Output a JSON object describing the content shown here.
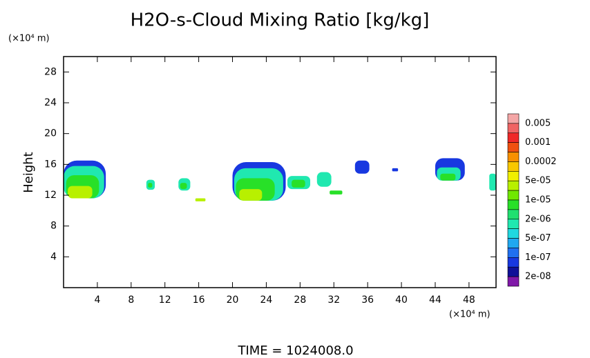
{
  "chart_data": {
    "type": "contour",
    "title": "H2O-s-Cloud Mixing Ratio [kg/kg]",
    "y_unit": "(×10⁴ m)",
    "x_unit": "(×10⁴ m)",
    "ylabel": "Height",
    "footer": "TIME = 1024008.0",
    "xlim": [
      0,
      51.2
    ],
    "ylim": [
      0,
      30
    ],
    "xticks": [
      4,
      8,
      12,
      16,
      20,
      24,
      28,
      32,
      36,
      40,
      44,
      48
    ],
    "yticks": [
      4,
      8,
      12,
      16,
      20,
      24,
      28
    ],
    "colorbar": {
      "levels": [
        0.005,
        0.001,
        0.0002,
        {
          "value": 5e-05,
          "label": "5e-05"
        },
        {
          "value": 1e-05,
          "label": "1e-05"
        },
        {
          "value": 2e-06,
          "label": "2e-06"
        },
        {
          "value": 5e-07,
          "label": "5e-07"
        },
        {
          "value": 1e-07,
          "label": "1e-07"
        },
        {
          "value": 2e-08,
          "label": "2e-08"
        }
      ],
      "colors": [
        "#f4a6a6",
        "#f06464",
        "#f02828",
        "#f05010",
        "#f89000",
        "#f8c800",
        "#f0f000",
        "#b8f000",
        "#70e800",
        "#28e028",
        "#20e070",
        "#20e8b0",
        "#20d8e0",
        "#20a8f0",
        "#2070f0",
        "#1838e0",
        "#101098",
        "#8018a8"
      ]
    },
    "clouds": [
      {
        "x": [
          0,
          5
        ],
        "y": [
          11.6,
          16.5
        ],
        "value": 1e-07
      },
      {
        "x": [
          0,
          4.8
        ],
        "y": [
          11.6,
          15.8
        ],
        "value": 2e-06
      },
      {
        "x": [
          0.3,
          4.2
        ],
        "y": [
          11.6,
          14.6
        ],
        "value": 1e-05
      },
      {
        "x": [
          0.5,
          3.4
        ],
        "y": [
          11.6,
          13.2
        ],
        "value": 5e-05
      },
      {
        "x": [
          9.8,
          10.8
        ],
        "y": [
          12.7,
          14.0
        ],
        "value": 2e-06
      },
      {
        "x": [
          10.0,
          10.5
        ],
        "y": [
          13.0,
          13.6
        ],
        "value": 1e-05
      },
      {
        "x": [
          13.6,
          15.0
        ],
        "y": [
          12.6,
          14.2
        ],
        "value": 2e-06
      },
      {
        "x": [
          13.8,
          14.6
        ],
        "y": [
          12.8,
          13.6
        ],
        "value": 1e-05
      },
      {
        "x": [
          15.6,
          16.8
        ],
        "y": [
          11.2,
          11.6
        ],
        "value": 5e-05
      },
      {
        "x": [
          20.0,
          26.3
        ],
        "y": [
          11.3,
          16.3
        ],
        "value": 1e-07
      },
      {
        "x": [
          20.2,
          26.0
        ],
        "y": [
          11.3,
          15.5
        ],
        "value": 2e-06
      },
      {
        "x": [
          20.4,
          25.0
        ],
        "y": [
          11.3,
          14.2
        ],
        "value": 1e-05
      },
      {
        "x": [
          20.8,
          23.5
        ],
        "y": [
          11.3,
          12.8
        ],
        "value": 5e-05
      },
      {
        "x": [
          26.5,
          29.2
        ],
        "y": [
          12.8,
          14.5
        ],
        "value": 2e-06
      },
      {
        "x": [
          27.0,
          28.6
        ],
        "y": [
          13.0,
          14.0
        ],
        "value": 1e-05
      },
      {
        "x": [
          30.0,
          31.7
        ],
        "y": [
          13.1,
          15.0
        ],
        "value": 2e-06
      },
      {
        "x": [
          31.5,
          33.0
        ],
        "y": [
          12.1,
          12.6
        ],
        "value": 1e-05
      },
      {
        "x": [
          34.5,
          36.2
        ],
        "y": [
          14.8,
          16.5
        ],
        "value": 1e-07
      },
      {
        "x": [
          38.9,
          39.6
        ],
        "y": [
          15.1,
          15.5
        ],
        "value": 1e-07
      },
      {
        "x": [
          44.0,
          47.5
        ],
        "y": [
          13.9,
          16.8
        ],
        "value": 1e-07
      },
      {
        "x": [
          44.2,
          47.0
        ],
        "y": [
          13.9,
          15.6
        ],
        "value": 2e-06
      },
      {
        "x": [
          44.6,
          46.4
        ],
        "y": [
          13.9,
          14.8
        ],
        "value": 1e-05
      },
      {
        "x": [
          50.4,
          51.2
        ],
        "y": [
          12.6,
          14.8
        ],
        "value": 2e-06
      }
    ]
  }
}
